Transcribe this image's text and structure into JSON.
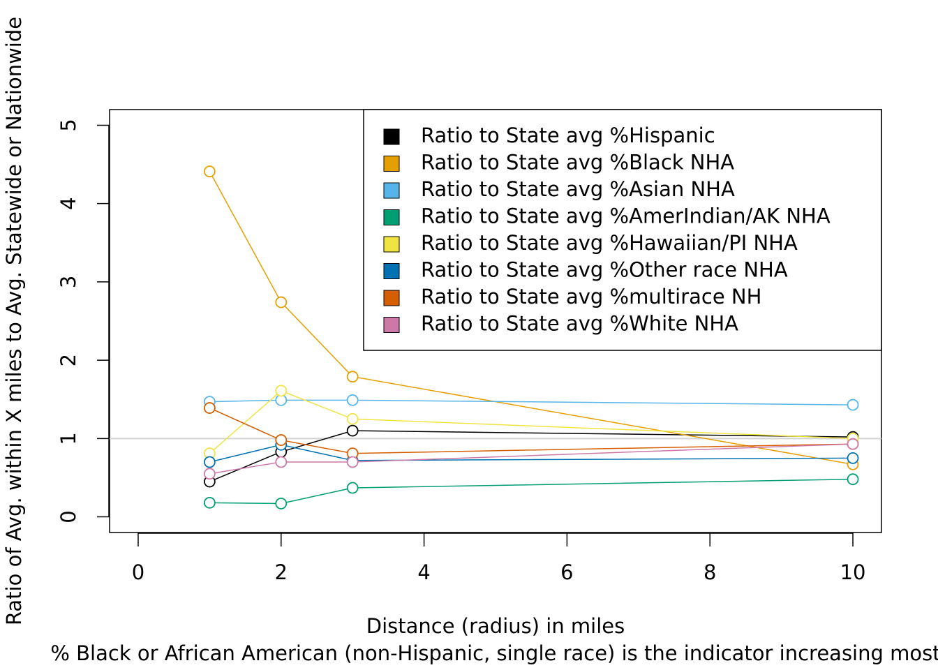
{
  "chart_data": {
    "type": "line",
    "xlabel": "Distance (radius) in miles",
    "ylabel": "Ratio of Avg. within X miles to Avg. Statewide or Nationwide",
    "subtitle": "% Black or African American (non-Hispanic, single race) is the indicator increasing most",
    "x": [
      1,
      2,
      3,
      10
    ],
    "series": [
      {
        "name": "Ratio to State avg %Hispanic",
        "color": "#000000",
        "values": [
          0.45,
          0.83,
          1.1,
          1.02
        ]
      },
      {
        "name": "Ratio to State avg %Black NHA",
        "color": "#E69F00",
        "values": [
          4.41,
          2.74,
          1.79,
          0.67
        ]
      },
      {
        "name": "Ratio to State avg %Asian NHA",
        "color": "#56B4E9",
        "values": [
          1.47,
          1.49,
          1.49,
          1.43
        ]
      },
      {
        "name": "Ratio to State avg %AmerIndian/AK NHA",
        "color": "#009E73",
        "values": [
          0.18,
          0.17,
          0.37,
          0.48
        ]
      },
      {
        "name": "Ratio to State avg %Hawaiian/PI NHA",
        "color": "#F0E442",
        "values": [
          0.81,
          1.61,
          1.25,
          1.0
        ]
      },
      {
        "name": "Ratio to State avg %Other race NHA",
        "color": "#0072B2",
        "values": [
          0.7,
          0.92,
          0.72,
          0.75
        ]
      },
      {
        "name": "Ratio to State avg %multirace NH",
        "color": "#D55E00",
        "values": [
          1.39,
          0.98,
          0.81,
          0.93
        ]
      },
      {
        "name": "Ratio to State avg %White NHA",
        "color": "#CC79A7",
        "values": [
          0.55,
          0.7,
          0.7,
          0.93
        ]
      }
    ],
    "xlim": [
      -0.4,
      10.4
    ],
    "xticks": [
      0,
      2,
      4,
      6,
      8,
      10
    ],
    "ylim": [
      -0.2,
      5.2
    ],
    "yticks": [
      0,
      1,
      2,
      3,
      4,
      5
    ],
    "hline": 1,
    "hline_color": "#d3d3d3",
    "legend": "topright"
  }
}
